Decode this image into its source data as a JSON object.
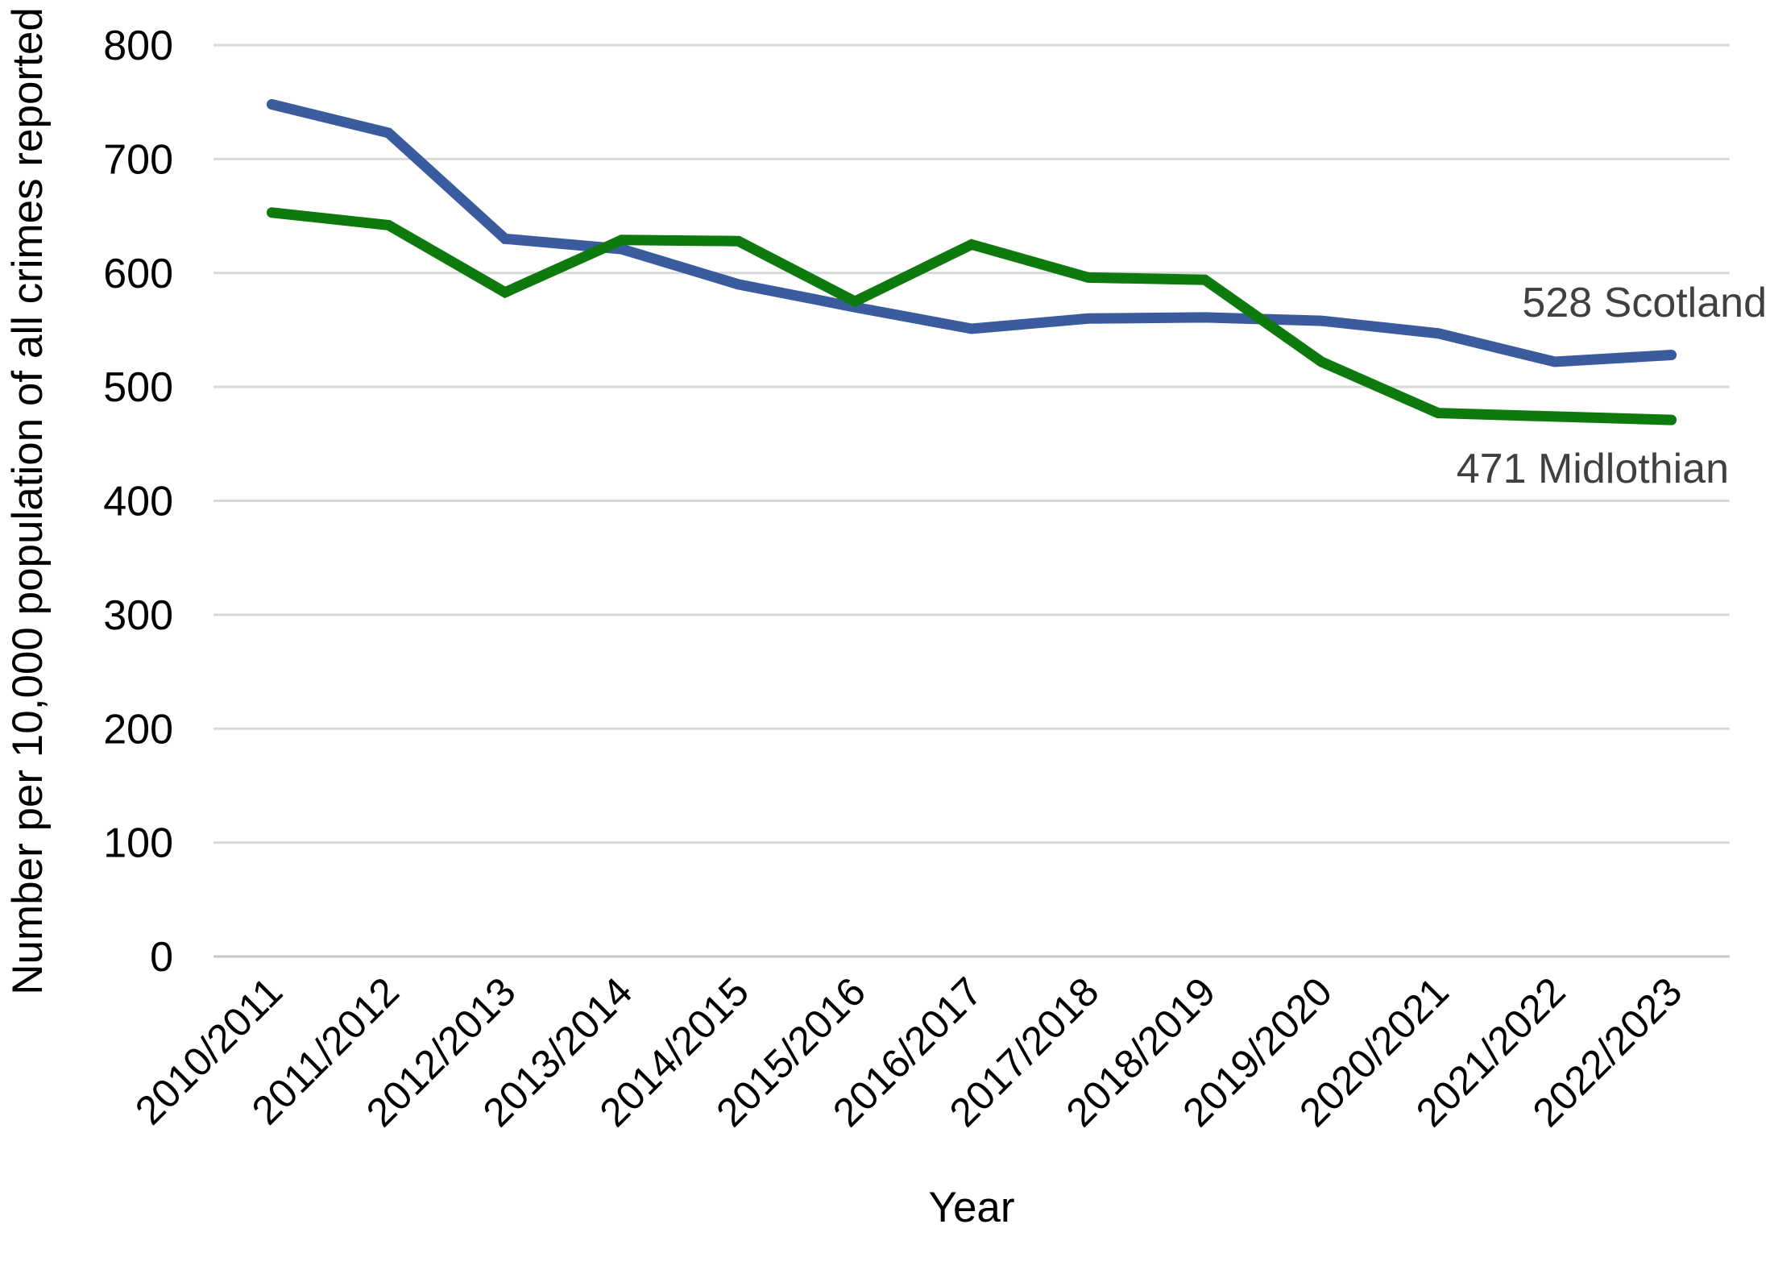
{
  "chart_data": {
    "type": "line",
    "title": "",
    "xlabel": "Year",
    "ylabel": "Number per 10,000 population of all crimes reported",
    "ylim": [
      0,
      800
    ],
    "ytick_step": 100,
    "grid": true,
    "legend_position": "end-of-line labels inside plot",
    "categories": [
      "2010/2011",
      "2011/2012",
      "2012/2013",
      "2013/2014",
      "2014/2015",
      "2015/2016",
      "2016/2017",
      "2017/2018",
      "2018/2019",
      "2019/2020",
      "2020/2021",
      "2021/2022",
      "2022/2023"
    ],
    "series": [
      {
        "name": "Scotland",
        "color": "#3A5C9E",
        "end_label": "528 Scotland",
        "end_value": 528,
        "values": [
          748,
          723,
          630,
          621,
          590,
          570,
          551,
          560,
          561,
          558,
          547,
          522,
          528
        ]
      },
      {
        "name": "Midlothian",
        "color": "#0E7A0E",
        "end_label": "471 Midlothian",
        "end_value": 471,
        "values": [
          653,
          642,
          583,
          629,
          628,
          575,
          625,
          596,
          594,
          522,
          477,
          474,
          471
        ]
      }
    ]
  },
  "colors": {
    "gridline": "#D9D9D9",
    "axis_line": "#C8C8C8",
    "tick_text": "#000000",
    "end_label_text": "#404040",
    "background": "#FFFFFF"
  }
}
